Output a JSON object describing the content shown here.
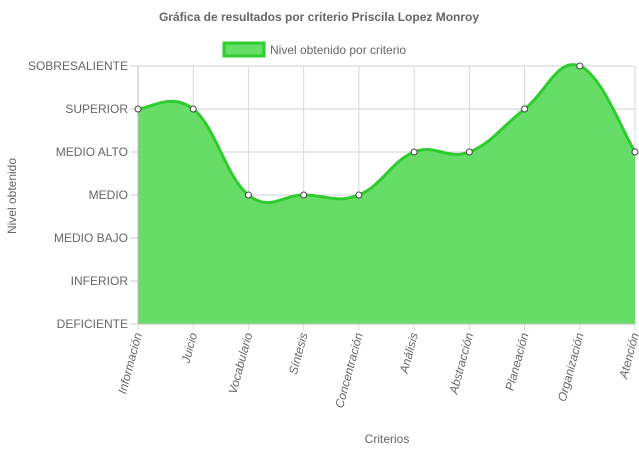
{
  "chart_data": {
    "type": "area",
    "title": "Gráfica de resultados por criterio Priscila Lopez Monroy",
    "xlabel": "Criterios",
    "ylabel": "Nivel obtenido",
    "categories": [
      "Información",
      "Juicio",
      "Vocabulario",
      "Síntesis",
      "Concentración",
      "Análisis",
      "Abstracción",
      "Planeación",
      "Organización",
      "Atención"
    ],
    "y_levels": [
      "DEFICIENTE",
      "INFERIOR",
      "MEDIO BAJO",
      "MEDIO",
      "MEDIO ALTO",
      "SUPERIOR",
      "SOBRESALIENTE"
    ],
    "ylim": [
      0,
      6
    ],
    "grid": true,
    "legend_position": "top",
    "series": [
      {
        "name": "Nivel obtenido por criterio",
        "values": [
          5,
          5,
          3,
          3,
          3,
          4,
          4,
          5,
          6,
          4
        ],
        "fill_color": "#66dd66",
        "line_color": "#2ecc2e"
      }
    ]
  }
}
